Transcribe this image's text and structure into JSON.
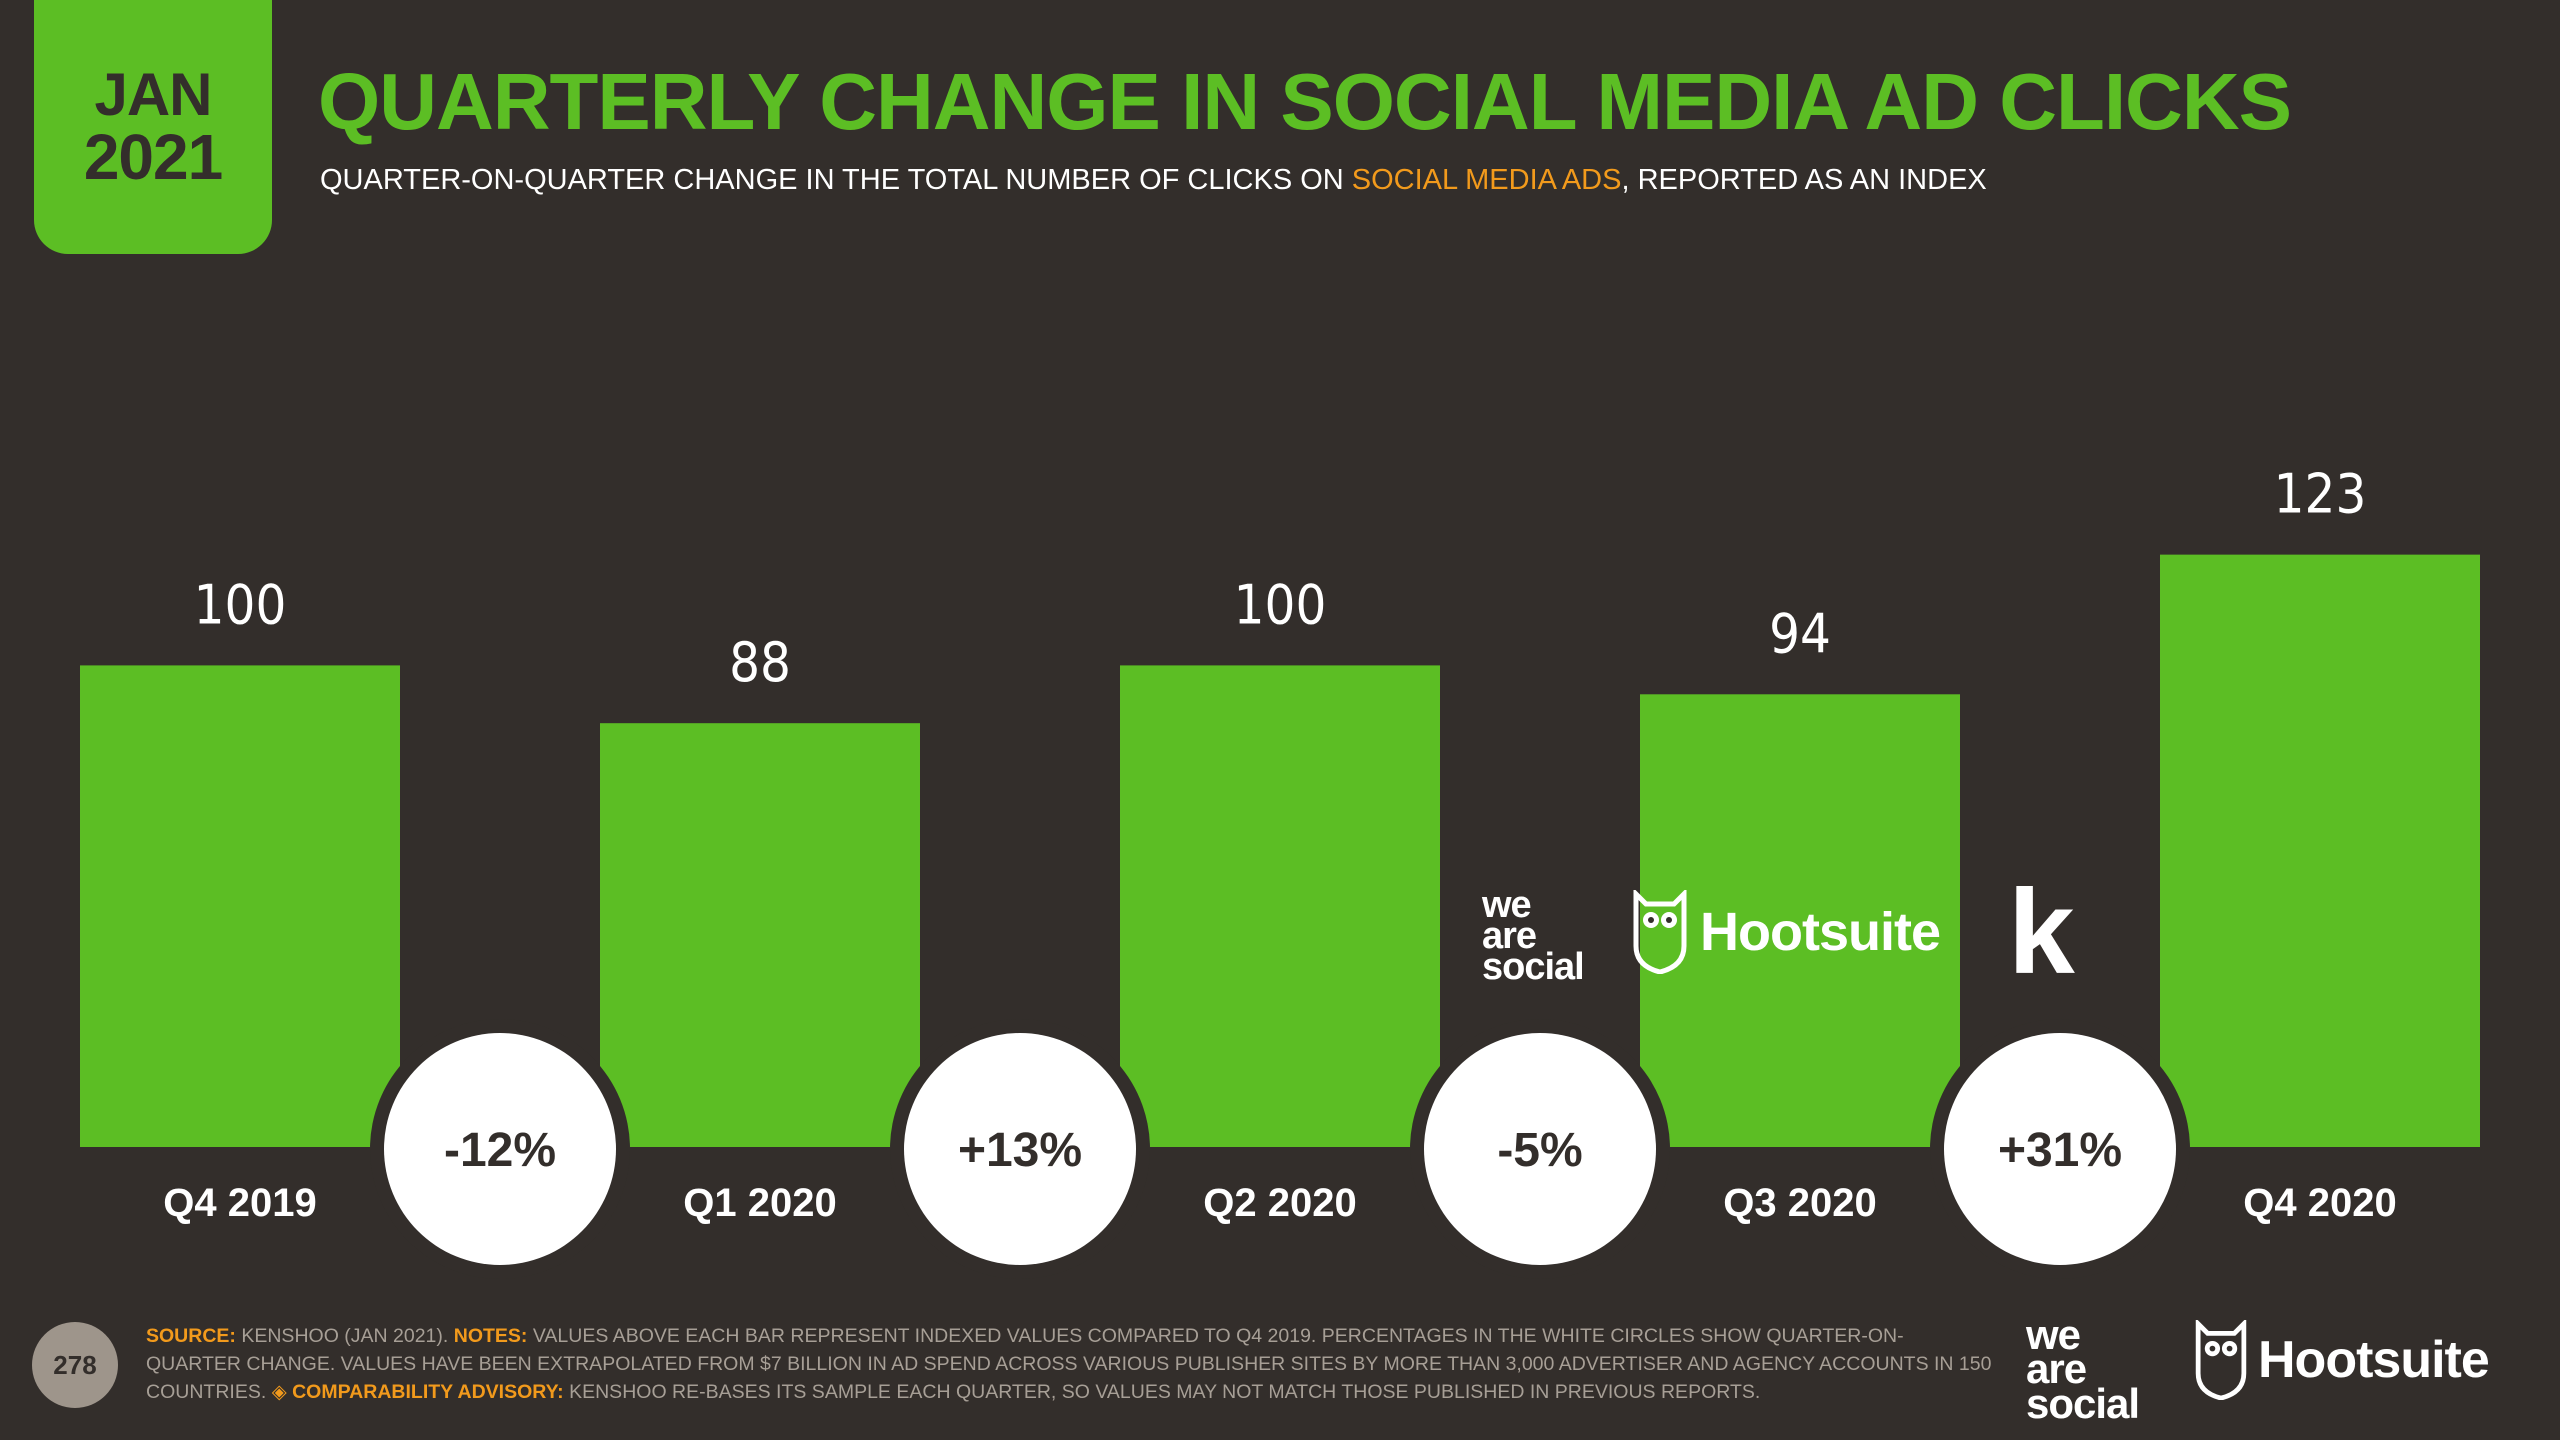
{
  "badge": {
    "month": "JAN",
    "year": "2021"
  },
  "title": "QUARTERLY CHANGE IN SOCIAL MEDIA AD CLICKS",
  "subtitle": {
    "before": "QUARTER-ON-QUARTER CHANGE IN THE TOTAL NUMBER OF CLICKS ON ",
    "highlight": "SOCIAL MEDIA ADS",
    "after": ", REPORTED AS AN INDEX"
  },
  "chart_data": {
    "type": "bar",
    "title": "QUARTERLY CHANGE IN SOCIAL MEDIA AD CLICKS",
    "xlabel": "",
    "ylabel": "",
    "ylim": [
      0,
      123
    ],
    "categories": [
      "Q4 2019",
      "Q1 2020",
      "Q2 2020",
      "Q3 2020",
      "Q4 2020"
    ],
    "values": [
      100,
      88,
      100,
      94,
      123
    ],
    "changes": [
      "-12%",
      "+13%",
      "-5%",
      "+31%"
    ],
    "bar_color": "#5cbe24",
    "grid": false
  },
  "logos": {
    "was_line1": "we",
    "was_line2": "are",
    "was_line3": "social",
    "hootsuite": "Hootsuite",
    "kenshoo": "k"
  },
  "footer": {
    "page": "278",
    "source_label": "SOURCE:",
    "source_text": " KENSHOO (JAN 2021). ",
    "notes_label": "NOTES:",
    "notes_text": " VALUES ABOVE EACH BAR REPRESENT INDEXED VALUES COMPARED TO Q4 2019. PERCENTAGES IN THE WHITE CIRCLES SHOW QUARTER-ON-QUARTER CHANGE. VALUES HAVE BEEN EXTRAPOLATED FROM $7 BILLION IN AD SPEND ACROSS VARIOUS PUBLISHER SITES BY MORE THAN 3,000 ADVERTISER AND AGENCY ACCOUNTS IN 150 COUNTRIES. ",
    "advisory_label": "◈ COMPARABILITY ADVISORY:",
    "advisory_text": " KENSHOO RE-BASES ITS SAMPLE EACH QUARTER, SO VALUES MAY NOT MATCH THOSE PUBLISHED IN PREVIOUS REPORTS."
  }
}
